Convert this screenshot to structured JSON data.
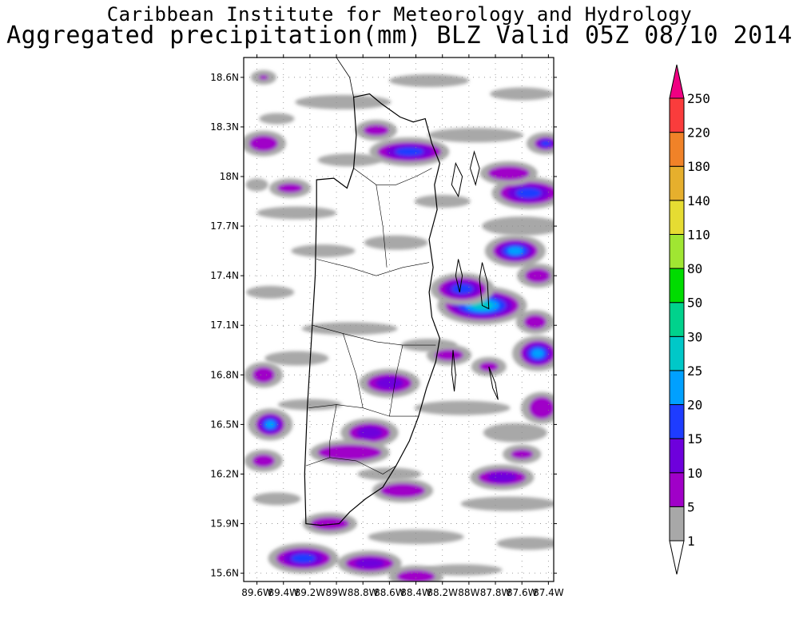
{
  "header": {
    "line1": "Caribbean Institute for Meteorology and Hydrology",
    "line2": "Aggregated precipitation(mm) BLZ Valid 05Z 08/10 2014"
  },
  "map": {
    "region": "Belize",
    "lat_ticks": [
      "18.6N",
      "18.3N",
      "18N",
      "17.7N",
      "17.4N",
      "17.1N",
      "16.8N",
      "16.5N",
      "16.2N",
      "15.9N",
      "15.6N"
    ],
    "lon_ticks": [
      "89.6W",
      "89.4W",
      "89.2W",
      "89W",
      "88.8W",
      "88.6W",
      "88.4W",
      "88.2W",
      "88W",
      "87.8W",
      "87.6W",
      "87.4W"
    ],
    "lat_range": [
      15.55,
      18.72
    ],
    "lon_range": [
      -89.7,
      -87.36
    ]
  },
  "colorbar": {
    "levels": [
      "1",
      "5",
      "10",
      "15",
      "20",
      "25",
      "30",
      "50",
      "80",
      "110",
      "140",
      "180",
      "220",
      "250"
    ],
    "colors": [
      "#ffffff",
      "#a8a8a8",
      "#a000c8",
      "#6e00dc",
      "#1e3cff",
      "#00a0ff",
      "#00c8c8",
      "#00d28c",
      "#00dc00",
      "#a0e632",
      "#e6dc32",
      "#e6af2d",
      "#f08228",
      "#fa3c3c",
      "#f00082"
    ]
  },
  "precip_cells": [
    {
      "lon": -89.25,
      "lat": 15.69,
      "rx": 34,
      "ry": 13,
      "level": 4
    },
    {
      "lon": -88.75,
      "lat": 15.66,
      "rx": 30,
      "ry": 10,
      "level": 3
    },
    {
      "lon": -88.4,
      "lat": 15.58,
      "rx": 24,
      "ry": 8,
      "level": 2
    },
    {
      "lon": -89.5,
      "lat": 16.5,
      "rx": 18,
      "ry": 14,
      "level": 5
    },
    {
      "lon": -88.75,
      "lat": 16.45,
      "rx": 26,
      "ry": 12,
      "level": 3
    },
    {
      "lon": -88.9,
      "lat": 16.33,
      "rx": 40,
      "ry": 10,
      "level": 2
    },
    {
      "lon": -88.5,
      "lat": 16.1,
      "rx": 28,
      "ry": 9,
      "level": 2
    },
    {
      "lon": -87.75,
      "lat": 16.18,
      "rx": 30,
      "ry": 10,
      "level": 3
    },
    {
      "lon": -88.6,
      "lat": 16.75,
      "rx": 28,
      "ry": 12,
      "level": 3
    },
    {
      "lon": -88.15,
      "lat": 16.92,
      "rx": 18,
      "ry": 7,
      "level": 2
    },
    {
      "lon": -87.48,
      "lat": 16.93,
      "rx": 22,
      "ry": 16,
      "level": 5
    },
    {
      "lon": -87.45,
      "lat": 16.6,
      "rx": 16,
      "ry": 14,
      "level": 2
    },
    {
      "lon": -87.9,
      "lat": 17.22,
      "rx": 46,
      "ry": 18,
      "level": 6
    },
    {
      "lon": -88.05,
      "lat": 17.32,
      "rx": 30,
      "ry": 14,
      "level": 4
    },
    {
      "lon": -87.65,
      "lat": 17.55,
      "rx": 28,
      "ry": 14,
      "level": 5
    },
    {
      "lon": -87.48,
      "lat": 17.4,
      "rx": 16,
      "ry": 9,
      "level": 2
    },
    {
      "lon": -87.5,
      "lat": 17.12,
      "rx": 14,
      "ry": 9,
      "level": 2
    },
    {
      "lon": -87.55,
      "lat": 17.9,
      "rx": 36,
      "ry": 14,
      "level": 4
    },
    {
      "lon": -87.7,
      "lat": 18.02,
      "rx": 26,
      "ry": 9,
      "level": 2
    },
    {
      "lon": -87.42,
      "lat": 18.2,
      "rx": 14,
      "ry": 8,
      "level": 4
    },
    {
      "lon": -88.45,
      "lat": 18.15,
      "rx": 40,
      "ry": 12,
      "level": 4
    },
    {
      "lon": -88.7,
      "lat": 18.28,
      "rx": 16,
      "ry": 7,
      "level": 2
    },
    {
      "lon": -89.55,
      "lat": 18.2,
      "rx": 18,
      "ry": 10,
      "level": 2
    },
    {
      "lon": -89.35,
      "lat": 17.93,
      "rx": 16,
      "ry": 6,
      "level": 2
    },
    {
      "lon": -89.55,
      "lat": 18.6,
      "rx": 6,
      "ry": 3,
      "level": 2
    },
    {
      "lon": -89.55,
      "lat": 16.28,
      "rx": 14,
      "ry": 8,
      "level": 2
    },
    {
      "lon": -89.55,
      "lat": 16.8,
      "rx": 14,
      "ry": 10,
      "level": 2
    },
    {
      "lon": -89.05,
      "lat": 15.9,
      "rx": 24,
      "ry": 8,
      "level": 2
    },
    {
      "lon": -87.85,
      "lat": 16.85,
      "rx": 12,
      "ry": 6,
      "level": 2
    },
    {
      "lon": -87.6,
      "lat": 16.32,
      "rx": 14,
      "ry": 6,
      "level": 2
    }
  ],
  "gray_bands": [
    {
      "lon": -89.45,
      "lat": 18.35,
      "rx": 22,
      "ry": 7
    },
    {
      "lon": -88.95,
      "lat": 18.45,
      "rx": 60,
      "ry": 9
    },
    {
      "lon": -88.3,
      "lat": 18.58,
      "rx": 50,
      "ry": 8
    },
    {
      "lon": -87.6,
      "lat": 18.5,
      "rx": 40,
      "ry": 8
    },
    {
      "lon": -88.9,
      "lat": 18.1,
      "rx": 40,
      "ry": 8
    },
    {
      "lon": -89.3,
      "lat": 17.78,
      "rx": 50,
      "ry": 8
    },
    {
      "lon": -89.1,
      "lat": 17.55,
      "rx": 40,
      "ry": 8
    },
    {
      "lon": -89.5,
      "lat": 17.3,
      "rx": 30,
      "ry": 8
    },
    {
      "lon": -88.55,
      "lat": 17.6,
      "rx": 40,
      "ry": 9
    },
    {
      "lon": -88.9,
      "lat": 17.08,
      "rx": 60,
      "ry": 8
    },
    {
      "lon": -89.3,
      "lat": 16.9,
      "rx": 40,
      "ry": 9
    },
    {
      "lon": -88.3,
      "lat": 16.98,
      "rx": 35,
      "ry": 8
    },
    {
      "lon": -88.05,
      "lat": 16.6,
      "rx": 60,
      "ry": 9
    },
    {
      "lon": -87.65,
      "lat": 16.45,
      "rx": 40,
      "ry": 12
    },
    {
      "lon": -87.7,
      "lat": 16.02,
      "rx": 60,
      "ry": 9
    },
    {
      "lon": -88.4,
      "lat": 15.82,
      "rx": 60,
      "ry": 9
    },
    {
      "lon": -87.55,
      "lat": 15.78,
      "rx": 40,
      "ry": 8
    },
    {
      "lon": -88.05,
      "lat": 15.62,
      "rx": 50,
      "ry": 7
    },
    {
      "lon": -89.45,
      "lat": 16.05,
      "rx": 30,
      "ry": 8
    },
    {
      "lon": -89.2,
      "lat": 16.62,
      "rx": 40,
      "ry": 7
    },
    {
      "lon": -88.6,
      "lat": 16.2,
      "rx": 40,
      "ry": 8
    },
    {
      "lon": -87.6,
      "lat": 17.7,
      "rx": 50,
      "ry": 12
    },
    {
      "lon": -87.95,
      "lat": 18.25,
      "rx": 60,
      "ry": 9
    },
    {
      "lon": -89.6,
      "lat": 17.95,
      "rx": 14,
      "ry": 8
    },
    {
      "lon": -88.2,
      "lat": 17.85,
      "rx": 35,
      "ry": 8
    }
  ],
  "belize_outline": [
    [
      -88.87,
      18.48
    ],
    [
      -88.75,
      18.5
    ],
    [
      -88.66,
      18.44
    ],
    [
      -88.52,
      18.36
    ],
    [
      -88.42,
      18.33
    ],
    [
      -88.33,
      18.35
    ],
    [
      -88.28,
      18.2
    ],
    [
      -88.22,
      18.08
    ],
    [
      -88.26,
      17.95
    ],
    [
      -88.24,
      17.8
    ],
    [
      -88.3,
      17.62
    ],
    [
      -88.27,
      17.45
    ],
    [
      -88.3,
      17.3
    ],
    [
      -88.28,
      17.15
    ],
    [
      -88.22,
      17.02
    ],
    [
      -88.25,
      16.88
    ],
    [
      -88.32,
      16.72
    ],
    [
      -88.38,
      16.55
    ],
    [
      -88.45,
      16.4
    ],
    [
      -88.55,
      16.25
    ],
    [
      -88.65,
      16.12
    ],
    [
      -88.78,
      16.05
    ],
    [
      -88.9,
      15.97
    ],
    [
      -88.98,
      15.9
    ],
    [
      -89.12,
      15.89
    ],
    [
      -89.23,
      15.9
    ],
    [
      -89.24,
      16.2
    ],
    [
      -89.22,
      16.6
    ],
    [
      -89.19,
      17.0
    ],
    [
      -89.16,
      17.4
    ],
    [
      -89.15,
      17.82
    ],
    [
      -89.15,
      17.98
    ],
    [
      -89.02,
      17.99
    ],
    [
      -88.92,
      17.93
    ],
    [
      -88.87,
      18.05
    ],
    [
      -88.85,
      18.25
    ],
    [
      -88.87,
      18.48
    ]
  ],
  "district_lines": [
    [
      [
        -88.87,
        18.05
      ],
      [
        -88.7,
        17.95
      ],
      [
        -88.55,
        17.95
      ],
      [
        -88.4,
        18.0
      ],
      [
        -88.28,
        18.05
      ]
    ],
    [
      [
        -89.15,
        17.5
      ],
      [
        -88.9,
        17.45
      ],
      [
        -88.7,
        17.4
      ],
      [
        -88.5,
        17.45
      ],
      [
        -88.3,
        17.48
      ]
    ],
    [
      [
        -89.18,
        17.1
      ],
      [
        -88.95,
        17.05
      ],
      [
        -88.7,
        17.0
      ],
      [
        -88.5,
        16.98
      ],
      [
        -88.25,
        16.98
      ]
    ],
    [
      [
        -89.21,
        16.6
      ],
      [
        -89.0,
        16.62
      ],
      [
        -88.8,
        16.6
      ],
      [
        -88.6,
        16.55
      ],
      [
        -88.38,
        16.55
      ]
    ],
    [
      [
        -89.23,
        16.25
      ],
      [
        -89.05,
        16.3
      ],
      [
        -88.85,
        16.28
      ],
      [
        -88.65,
        16.2
      ],
      [
        -88.55,
        16.25
      ]
    ],
    [
      [
        -88.7,
        17.95
      ],
      [
        -88.65,
        17.7
      ],
      [
        -88.62,
        17.45
      ]
    ],
    [
      [
        -88.95,
        17.05
      ],
      [
        -88.85,
        16.8
      ],
      [
        -88.8,
        16.6
      ]
    ],
    [
      [
        -88.6,
        16.55
      ],
      [
        -88.55,
        16.8
      ],
      [
        -88.5,
        16.98
      ]
    ],
    [
      [
        -89.0,
        16.62
      ],
      [
        -89.05,
        16.4
      ],
      [
        -89.05,
        16.3
      ]
    ]
  ],
  "cayes": [
    [
      [
        -88.1,
        18.08
      ],
      [
        -88.05,
        18.0
      ],
      [
        -88.08,
        17.88
      ],
      [
        -88.13,
        17.95
      ],
      [
        -88.1,
        18.08
      ]
    ],
    [
      [
        -87.96,
        18.15
      ],
      [
        -87.92,
        18.05
      ],
      [
        -87.95,
        17.95
      ],
      [
        -87.99,
        18.05
      ],
      [
        -87.96,
        18.15
      ]
    ],
    [
      [
        -87.9,
        17.48
      ],
      [
        -87.86,
        17.36
      ],
      [
        -87.85,
        17.2
      ],
      [
        -87.9,
        17.22
      ],
      [
        -87.92,
        17.38
      ],
      [
        -87.9,
        17.48
      ]
    ],
    [
      [
        -88.08,
        17.5
      ],
      [
        -88.05,
        17.4
      ],
      [
        -88.07,
        17.3
      ],
      [
        -88.1,
        17.4
      ],
      [
        -88.08,
        17.5
      ]
    ],
    [
      [
        -88.12,
        16.95
      ],
      [
        -88.1,
        16.8
      ],
      [
        -88.11,
        16.7
      ],
      [
        -88.13,
        16.82
      ],
      [
        -88.12,
        16.95
      ]
    ],
    [
      [
        -87.85,
        16.85
      ],
      [
        -87.8,
        16.75
      ],
      [
        -87.78,
        16.65
      ],
      [
        -87.82,
        16.72
      ],
      [
        -87.85,
        16.85
      ]
    ]
  ]
}
